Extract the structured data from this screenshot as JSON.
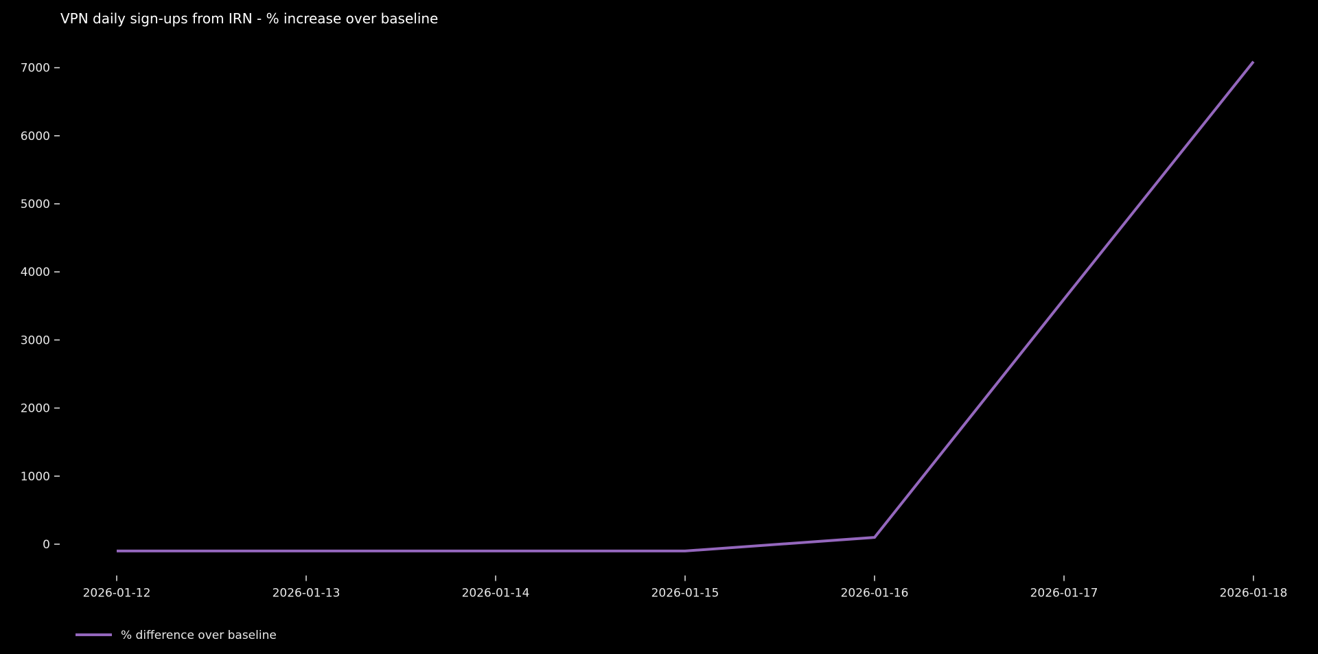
{
  "chart_data": {
    "type": "line",
    "title": "VPN daily sign-ups from IRN - % increase over baseline",
    "categories": [
      "2026-01-12",
      "2026-01-13",
      "2026-01-14",
      "2026-01-15",
      "2026-01-16",
      "2026-01-17",
      "2026-01-18"
    ],
    "series": [
      {
        "name": "% difference over baseline",
        "values": [
          -100,
          -100,
          -100,
          -100,
          100,
          3600,
          7090
        ]
      }
    ],
    "xlabel": "",
    "ylabel": "",
    "yticks": [
      0,
      1000,
      2000,
      3000,
      4000,
      5000,
      6000,
      7000
    ],
    "ylim": [
      -460,
      7450
    ],
    "grid": false,
    "legend_position": "below-axis-lower-left",
    "colors": {
      "background": "#000000",
      "text": "#e8e8e8",
      "title_text": "#ffffff",
      "line": "#9467bd"
    }
  }
}
